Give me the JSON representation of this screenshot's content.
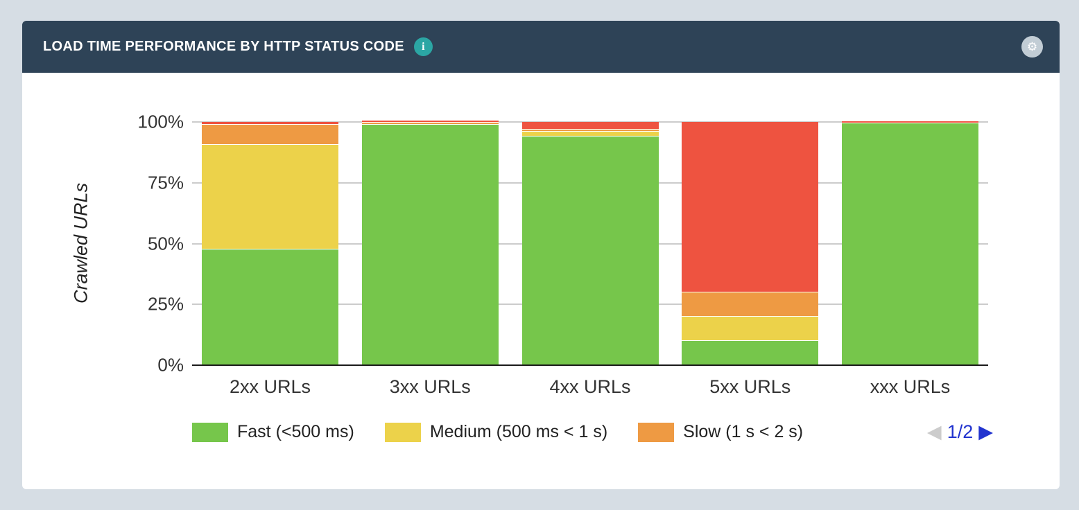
{
  "header": {
    "title": "LOAD TIME PERFORMANCE BY HTTP STATUS CODE",
    "icons": {
      "info": "i",
      "settings": "⚙",
      "prev": "◀",
      "next": "▶"
    }
  },
  "chart_data": {
    "type": "bar",
    "stacked": true,
    "percent_stacked": true,
    "title": "Load time performance by HTTP status code",
    "xlabel": "",
    "ylabel": "Crawled URLs",
    "ylim": [
      0,
      100
    ],
    "y_ticks": [
      "0%",
      "25%",
      "50%",
      "75%",
      "100%"
    ],
    "grid": true,
    "legend_position": "bottom",
    "categories": [
      "2xx URLs",
      "3xx URLs",
      "4xx URLs",
      "5xx URLs",
      "xxx URLs"
    ],
    "series": [
      {
        "name": "Fast (<500 ms)",
        "color": "#76c64b",
        "values": [
          47.5,
          99,
          94,
          10,
          99.5
        ]
      },
      {
        "name": "Medium (500 ms < 1 s)",
        "color": "#ecd24a",
        "values": [
          43,
          0,
          2,
          10,
          0
        ]
      },
      {
        "name": "Slow (1 s < 2 s)",
        "color": "#ee9a43",
        "values": [
          8.5,
          0.5,
          1,
          10,
          0
        ]
      },
      {
        "name": "",
        "color": "#ee5340",
        "values": [
          1,
          0.5,
          3,
          70,
          0.5
        ]
      }
    ]
  },
  "legend": {
    "items": [
      {
        "label": "Fast (<500 ms)",
        "color": "#76c64b"
      },
      {
        "label": "Medium (500 ms < 1 s)",
        "color": "#ecd24a"
      },
      {
        "label": "Slow (1 s < 2 s)",
        "color": "#ee9a43"
      }
    ],
    "pagination": {
      "current": "1/2",
      "prev_enabled": false,
      "next_enabled": true
    }
  },
  "colors": {
    "header_bg": "#2e4357",
    "page_bg": "#d6dde4",
    "info_badge": "#2ba6a4",
    "gear_circle": "#c2cdd5",
    "gridline": "#cccccc",
    "axis": "#1a1a1a",
    "pagination_blue": "#2133cf",
    "pagination_disabled": "#cccccc"
  }
}
